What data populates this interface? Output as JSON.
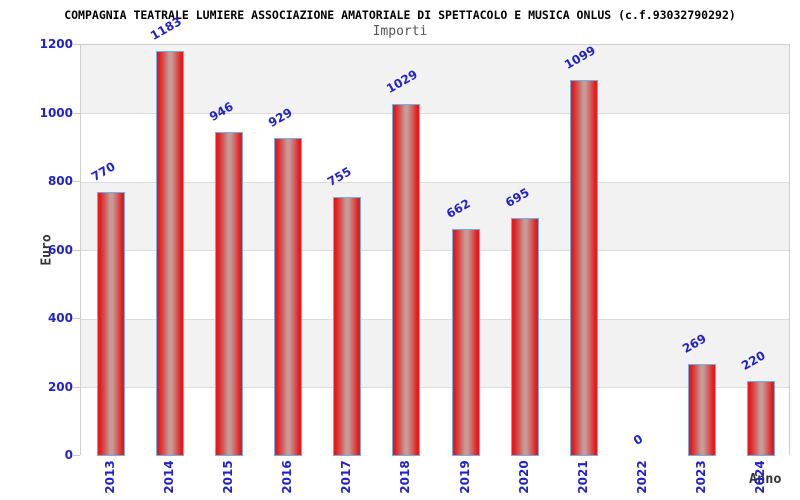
{
  "header": {
    "title": "COMPAGNIA TEATRALE LUMIERE ASSOCIAZIONE AMATORIALE DI SPETTACOLO E MUSICA ONLUS (c.f.93032790292)",
    "subtitle": "Importi"
  },
  "chart_data": {
    "type": "bar",
    "title": "COMPAGNIA TEATRALE LUMIERE ASSOCIAZIONE AMATORIALE DI SPETTACOLO E MUSICA ONLUS (c.f.93032790292)",
    "subtitle": "Importi",
    "categories": [
      "2013",
      "2014",
      "2015",
      "2016",
      "2017",
      "2018",
      "2019",
      "2020",
      "2021",
      "2022",
      "2023",
      "2024"
    ],
    "values": [
      770,
      1183,
      946,
      929,
      755,
      1029,
      662,
      695,
      1099,
      0,
      269,
      220
    ],
    "xlabel": "Anno",
    "ylabel": "Euro",
    "ylim": [
      0,
      1200
    ],
    "yticks": [
      0,
      200,
      400,
      600,
      800,
      1000,
      1200
    ],
    "grid": "horizontal-bands-alternating",
    "legend": "none",
    "colors": {
      "bar_edge_red": "#e8191d",
      "bar_center_light": "#c69a98",
      "bar_border_blue": "#6eb1e6",
      "label_blue": "#2222cc",
      "band_gray": "#f2f2f2",
      "band_white": "#ffffff",
      "gridline_gray": "#dcdcdc",
      "plot_border": "#cfcfcf",
      "title_black": "#000000",
      "subtitle_gray": "#555555",
      "axis_title_gray": "#333333"
    }
  }
}
